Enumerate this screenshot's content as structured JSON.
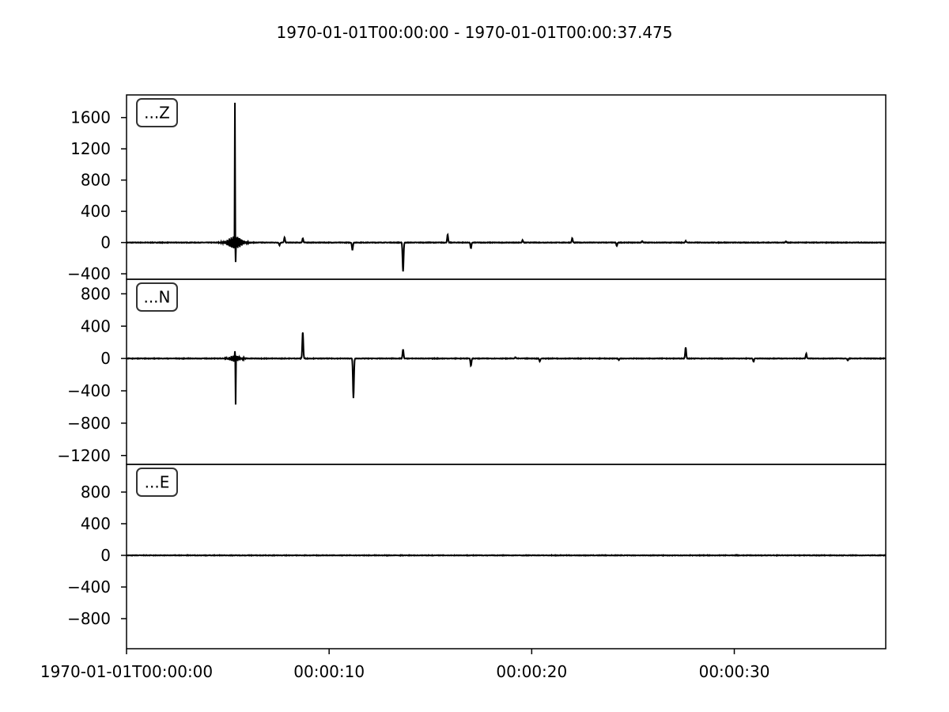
{
  "chart_data": {
    "type": "line",
    "title": "1970-01-01T00:00:00  -  1970-01-01T00:00:37.475",
    "xlim": [
      0,
      37.475
    ],
    "x_unit": "seconds since 1970-01-01T00:00:00",
    "x_ticks": [
      {
        "value": 0,
        "label": "1970-01-01T00:00:00"
      },
      {
        "value": 10,
        "label": "00:00:10"
      },
      {
        "value": 20,
        "label": "00:00:20"
      },
      {
        "value": 30,
        "label": "00:00:30"
      }
    ],
    "line_color": "#000000",
    "grid": false,
    "panels": [
      {
        "name": "...Z",
        "ylim": [
          -470,
          1890
        ],
        "yticks": [
          {
            "value": 1600,
            "label": "1600"
          },
          {
            "value": 1200,
            "label": "1200"
          },
          {
            "value": 800,
            "label": "800"
          },
          {
            "value": 400,
            "label": "400"
          },
          {
            "value": 0,
            "label": "0"
          },
          {
            "value": -400,
            "label": "−400"
          }
        ],
        "main_event": {
          "t": 5.35,
          "peak": 1790,
          "trough": -250,
          "envelope": 80,
          "width": 0.45
        },
        "spikes": [
          {
            "t": 7.8,
            "a": 65
          },
          {
            "t": 7.55,
            "a": -35
          },
          {
            "t": 8.7,
            "a": 55
          },
          {
            "t": 11.15,
            "a": -95
          },
          {
            "t": 13.65,
            "a": -370
          },
          {
            "t": 15.85,
            "a": 100
          },
          {
            "t": 17.0,
            "a": -75
          },
          {
            "t": 19.55,
            "a": 30
          },
          {
            "t": 22.0,
            "a": 55
          },
          {
            "t": 24.2,
            "a": -45
          },
          {
            "t": 25.45,
            "a": 20
          },
          {
            "t": 27.6,
            "a": 20
          },
          {
            "t": 32.55,
            "a": 15
          }
        ]
      },
      {
        "name": "...N",
        "ylim": [
          -1310,
          980
        ],
        "yticks": [
          {
            "value": 800,
            "label": "800"
          },
          {
            "value": 400,
            "label": "400"
          },
          {
            "value": 0,
            "label": "0"
          },
          {
            "value": -400,
            "label": "−400"
          },
          {
            "value": -800,
            "label": "−800"
          },
          {
            "value": -1200,
            "label": "−1200"
          }
        ],
        "main_event": {
          "t": 5.35,
          "peak": 90,
          "trough": -570,
          "envelope": 40,
          "width": 0.35
        },
        "spikes": [
          {
            "t": 8.7,
            "a": 330
          },
          {
            "t": 11.2,
            "a": -490
          },
          {
            "t": 13.65,
            "a": 115
          },
          {
            "t": 17.0,
            "a": -90
          },
          {
            "t": 19.2,
            "a": 15
          },
          {
            "t": 20.4,
            "a": -35
          },
          {
            "t": 24.3,
            "a": -20
          },
          {
            "t": 27.6,
            "a": 140
          },
          {
            "t": 30.95,
            "a": -40
          },
          {
            "t": 33.55,
            "a": 60
          },
          {
            "t": 35.6,
            "a": -25
          }
        ]
      },
      {
        "name": "...E",
        "ylim": [
          -1180,
          1150
        ],
        "yticks": [
          {
            "value": 800,
            "label": "800"
          },
          {
            "value": 400,
            "label": "400"
          },
          {
            "value": 0,
            "label": "0"
          },
          {
            "value": -400,
            "label": "−400"
          },
          {
            "value": -800,
            "label": "−800"
          }
        ],
        "main_event": null,
        "spikes": []
      }
    ]
  }
}
